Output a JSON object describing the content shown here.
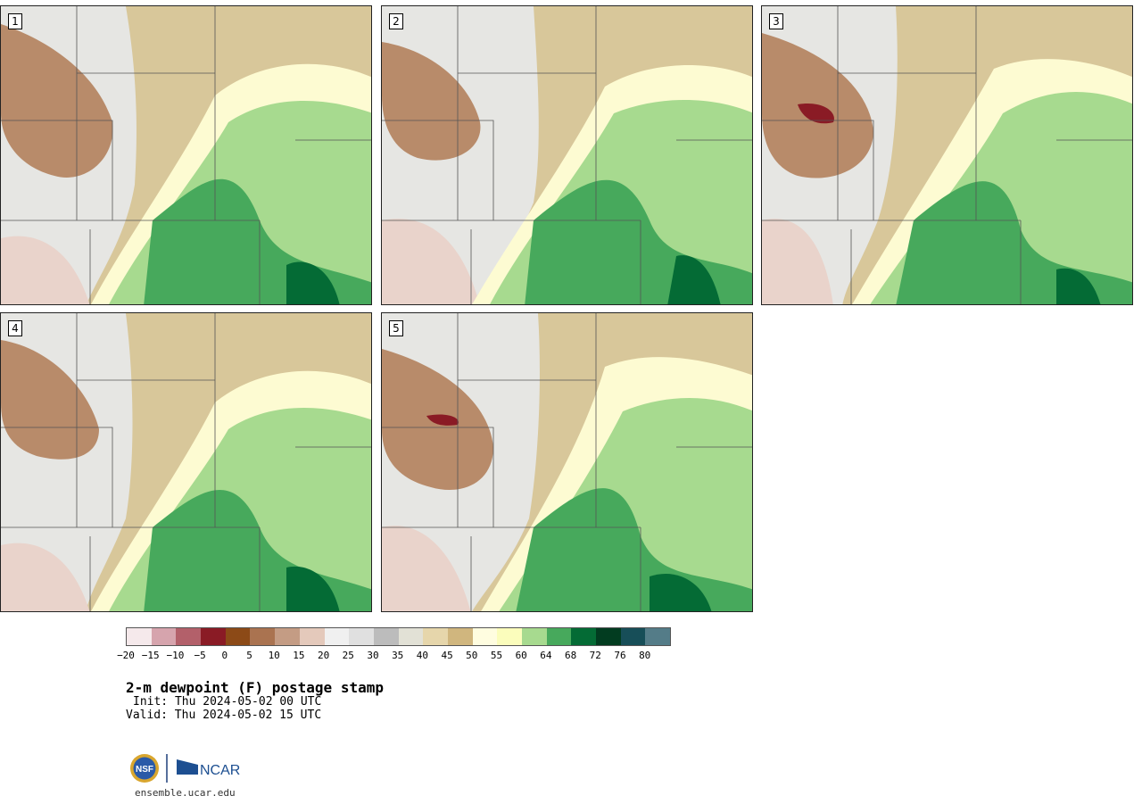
{
  "panels": [
    {
      "label": "1"
    },
    {
      "label": "2"
    },
    {
      "label": "3"
    },
    {
      "label": "4"
    },
    {
      "label": "5"
    }
  ],
  "colorbar": {
    "colors": [
      "#f5e9eb",
      "#d6a4ad",
      "#b3606a",
      "#8a1b25",
      "#8c4a17",
      "#aa7350",
      "#c49c84",
      "#e4c9bb",
      "#f0f0f0",
      "#e0e0e0",
      "#bcbcbc",
      "#e2e1d6",
      "#e6d6ab",
      "#d0b67e",
      "#fffde0",
      "#fbfdbc",
      "#a7da8f",
      "#47a95c",
      "#046b35",
      "#023c20",
      "#174e58",
      "#547c88"
    ],
    "tick_labels": [
      "−20",
      "−15",
      "−10",
      "−5",
      "0",
      "5",
      "10",
      "15",
      "20",
      "25",
      "30",
      "35",
      "40",
      "45",
      "50",
      "55",
      "60",
      "64",
      "68",
      "72",
      "76",
      "80"
    ]
  },
  "title": "2-m dewpoint (F) postage stamp",
  "init": "Init: Thu 2024-05-02 00 UTC",
  "valid": "Valid: Thu 2024-05-02 15 UTC",
  "logo": {
    "org1": "NSF",
    "org2": "NCAR"
  },
  "url": "ensemble.ucar.edu"
}
